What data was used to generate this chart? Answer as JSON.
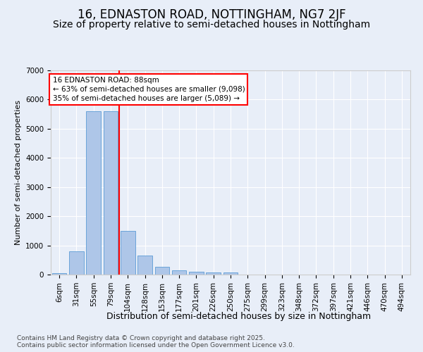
{
  "title": "16, EDNASTON ROAD, NOTTINGHAM, NG7 2JF",
  "subtitle": "Size of property relative to semi-detached houses in Nottingham",
  "xlabel": "Distribution of semi-detached houses by size in Nottingham",
  "ylabel": "Number of semi-detached properties",
  "categories": [
    "6sqm",
    "31sqm",
    "55sqm",
    "79sqm",
    "104sqm",
    "128sqm",
    "153sqm",
    "177sqm",
    "201sqm",
    "226sqm",
    "250sqm",
    "275sqm",
    "299sqm",
    "323sqm",
    "348sqm",
    "372sqm",
    "397sqm",
    "421sqm",
    "446sqm",
    "470sqm",
    "494sqm"
  ],
  "values": [
    50,
    800,
    5600,
    5600,
    1500,
    650,
    270,
    150,
    100,
    70,
    70,
    0,
    0,
    0,
    0,
    0,
    0,
    0,
    0,
    0,
    0
  ],
  "bar_color": "#aec6e8",
  "bar_edge_color": "#5b9bd5",
  "vline_x_idx": 3,
  "vline_color": "red",
  "annotation_title": "16 EDNASTON ROAD: 88sqm",
  "annotation_line2": "← 63% of semi-detached houses are smaller (9,098)",
  "annotation_line3": "35% of semi-detached houses are larger (5,089) →",
  "annotation_box_color": "white",
  "annotation_box_edge": "red",
  "ylim": [
    0,
    7000
  ],
  "yticks": [
    0,
    1000,
    2000,
    3000,
    4000,
    5000,
    6000,
    7000
  ],
  "bg_color": "#e8eef8",
  "footer1": "Contains HM Land Registry data © Crown copyright and database right 2025.",
  "footer2": "Contains public sector information licensed under the Open Government Licence v3.0.",
  "title_fontsize": 12,
  "subtitle_fontsize": 10,
  "xlabel_fontsize": 9,
  "ylabel_fontsize": 8,
  "tick_fontsize": 7.5,
  "footer_fontsize": 6.5
}
